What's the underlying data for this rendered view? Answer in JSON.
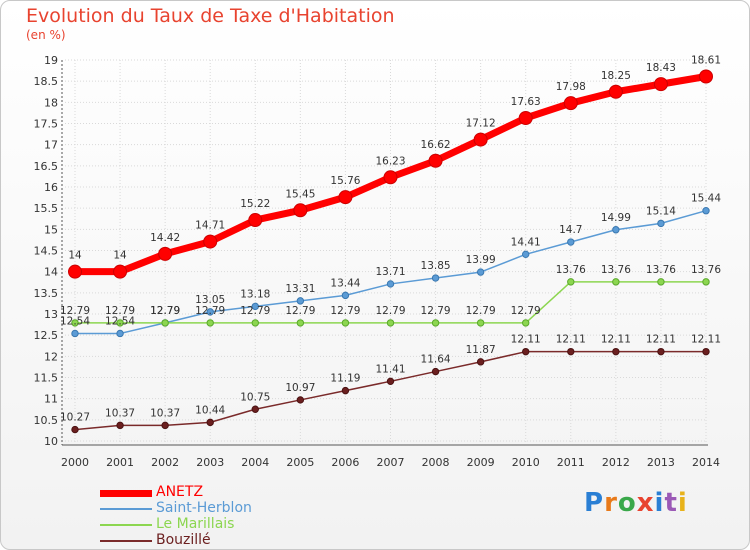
{
  "title": "Evolution du Taux de Taxe d'Habitation",
  "unit_label": "(en %)",
  "logo_text": "Proxiti",
  "chart_data": {
    "type": "line",
    "title": "Evolution du Taux de Taxe d'Habitation",
    "ylabel": "(en %)",
    "ylim": [
      10,
      19
    ],
    "yticks": [
      "10",
      "10.5",
      "11",
      "11.5",
      "12",
      "12.5",
      "13",
      "13.5",
      "14",
      "14.5",
      "15",
      "15.5",
      "16",
      "16.5",
      "17",
      "17.5",
      "18",
      "18.5",
      "19"
    ],
    "x": [
      "2000",
      "2001",
      "2002",
      "2003",
      "2004",
      "2005",
      "2006",
      "2007",
      "2008",
      "2009",
      "2010",
      "2011",
      "2012",
      "2013",
      "2014"
    ],
    "legend_position": "bottom-left",
    "series": [
      {
        "name": "ANETZ",
        "color": "#ff0000",
        "values": [
          14,
          14,
          14.42,
          14.71,
          15.22,
          15.45,
          15.76,
          16.23,
          16.62,
          17.12,
          17.63,
          17.98,
          18.25,
          18.43,
          18.61
        ],
        "labels": [
          "14",
          "14",
          "14.42",
          "14.71",
          "15.22",
          "15.45",
          "15.76",
          "16.23",
          "16.62",
          "17.12",
          "17.63",
          "17.98",
          "18.25",
          "18.43",
          "18.61"
        ]
      },
      {
        "name": "Saint-Herblon",
        "color": "#5b9bd5",
        "values": [
          12.54,
          12.54,
          12.79,
          13.05,
          13.18,
          13.31,
          13.44,
          13.71,
          13.85,
          13.99,
          14.41,
          14.7,
          14.99,
          15.14,
          15.44
        ],
        "labels": [
          "12.54",
          "12.54",
          "12.79",
          "13.05",
          "13.18",
          "13.31",
          "13.44",
          "13.71",
          "13.85",
          "13.99",
          "14.41",
          "14.7",
          "14.99",
          "15.14",
          "15.44"
        ]
      },
      {
        "name": "Le Marillais",
        "color": "#8cd650",
        "values": [
          12.79,
          12.79,
          12.79,
          12.79,
          12.79,
          12.79,
          12.79,
          12.79,
          12.79,
          12.79,
          12.79,
          13.76,
          13.76,
          13.76,
          13.76
        ],
        "labels": [
          "12.79",
          "12.79",
          "12.79",
          "12.79",
          "12.79",
          "12.79",
          "12.79",
          "12.79",
          "12.79",
          "12.79",
          "12.79",
          "13.76",
          "13.76",
          "13.76",
          "13.76"
        ]
      },
      {
        "name": "Bouzillé",
        "color": "#7a2a2a",
        "values": [
          10.27,
          10.37,
          10.37,
          10.44,
          10.75,
          10.97,
          11.19,
          11.41,
          11.64,
          11.87,
          12.11,
          12.11,
          12.11,
          12.11,
          12.11
        ],
        "labels": [
          "10.27",
          "10.37",
          "10.37",
          "10.44",
          "10.75",
          "10.97",
          "11.19",
          "11.41",
          "11.64",
          "11.87",
          "12.11",
          "12.11",
          "12.11",
          "12.11",
          "12.11"
        ]
      }
    ]
  }
}
